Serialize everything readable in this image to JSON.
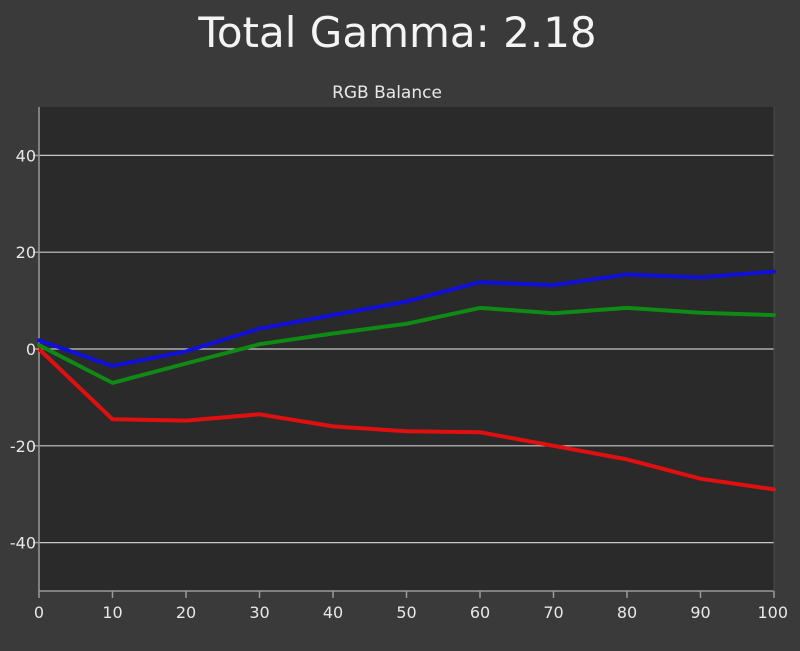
{
  "page": {
    "title": "Total Gamma: 2.18"
  },
  "colors": {
    "background": "#3a3a3a",
    "plot_background": "#2a2a2a",
    "gridline": "#c8c8c8",
    "axis": "#9a9a9a",
    "red": "#e01010",
    "green": "#0f8a14",
    "blue": "#1010d8"
  },
  "chart_data": {
    "type": "line",
    "title": "Total Gamma: 2.18",
    "subtitle": "RGB Balance",
    "xlabel": "",
    "ylabel": "",
    "x": [
      0,
      10,
      20,
      30,
      40,
      50,
      60,
      70,
      80,
      90,
      100
    ],
    "xlim": [
      0,
      100
    ],
    "ylim": [
      -50,
      50
    ],
    "xticks": [
      0,
      10,
      20,
      30,
      40,
      50,
      60,
      70,
      80,
      90,
      100
    ],
    "yticks": [
      -40,
      -20,
      0,
      20,
      40
    ],
    "grid": "horizontal",
    "legend": "none",
    "series": [
      {
        "key": "red",
        "color": "#e01010",
        "values": [
          0,
          -14.5,
          -14.8,
          -13.5,
          -16,
          -17,
          -17.2,
          -20,
          -22.8,
          -26.8,
          -29
        ]
      },
      {
        "key": "green",
        "color": "#0f8a14",
        "values": [
          0.8,
          -7,
          -3,
          1,
          3.2,
          5.2,
          8.5,
          7.4,
          8.5,
          7.5,
          7
        ]
      },
      {
        "key": "blue",
        "color": "#1010d8",
        "values": [
          1.8,
          -3.5,
          -0.5,
          4.2,
          7,
          9.8,
          13.8,
          13.2,
          15.4,
          14.8,
          16
        ]
      }
    ]
  }
}
